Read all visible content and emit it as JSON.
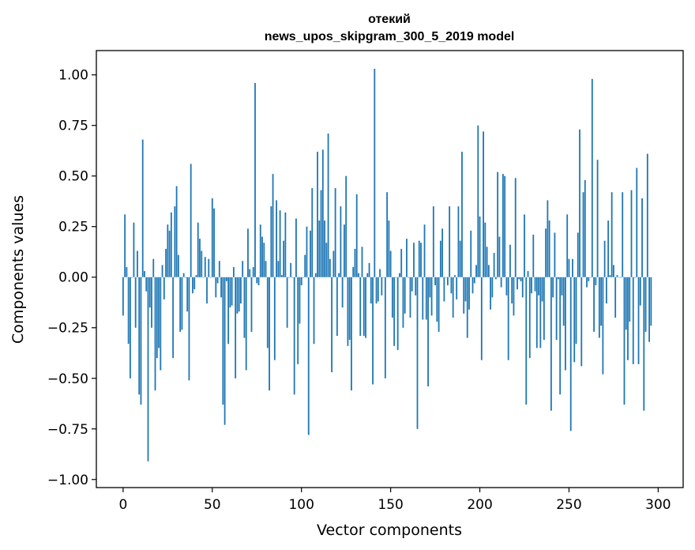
{
  "chart_data": {
    "type": "bar",
    "title_line1": "отекий",
    "title_line2": "news_upos_skipgram_300_5_2019 model",
    "xlabel": "Vector components",
    "ylabel": "Components values",
    "xlim": [
      -15,
      314
    ],
    "ylim": [
      -1.04,
      1.12
    ],
    "x_ticks": [
      0,
      50,
      100,
      150,
      200,
      250,
      300
    ],
    "x_tick_labels": [
      "0",
      "50",
      "100",
      "150",
      "200",
      "250",
      "300"
    ],
    "y_ticks": [
      1.0,
      0.75,
      0.5,
      0.25,
      0.0,
      -0.25,
      -0.5,
      -0.75,
      -1.0
    ],
    "y_tick_labels": [
      "1.00",
      "0.75",
      "0.50",
      "0.25",
      "0.00",
      "−0.25",
      "−0.50",
      "−0.75",
      "−1.00"
    ],
    "bar_color": "#1f77b4",
    "values": [
      -0.19,
      0.31,
      0.05,
      -0.33,
      -0.5,
      0.0,
      0.27,
      -0.25,
      0.13,
      -0.58,
      -0.63,
      0.68,
      0.03,
      -0.07,
      -0.91,
      -0.15,
      -0.25,
      0.09,
      -0.56,
      -0.4,
      -0.35,
      -0.46,
      0.06,
      -0.11,
      0.14,
      0.26,
      0.23,
      0.32,
      -0.4,
      0.35,
      0.45,
      0.11,
      -0.27,
      -0.26,
      0.02,
      0.0,
      -0.17,
      -0.51,
      0.56,
      -0.08,
      -0.06,
      0.01,
      0.27,
      0.19,
      0.13,
      0.0,
      0.1,
      -0.13,
      0.09,
      0.0,
      0.39,
      0.34,
      -0.1,
      -0.03,
      0.08,
      -0.1,
      -0.63,
      -0.73,
      -0.02,
      -0.33,
      -0.15,
      -0.14,
      0.05,
      -0.5,
      -0.18,
      -0.17,
      -0.13,
      0.08,
      -0.3,
      -0.46,
      0.24,
      0.04,
      -0.27,
      0.05,
      0.96,
      -0.03,
      -0.04,
      0.26,
      0.2,
      0.17,
      0.08,
      -0.35,
      -0.56,
      0.35,
      0.51,
      -0.41,
      0.38,
      0.08,
      0.33,
      0.01,
      0.18,
      0.32,
      -0.25,
      0.0,
      0.07,
      0.0,
      -0.58,
      0.29,
      -0.43,
      -0.23,
      -0.04,
      0.0,
      0.11,
      0.25,
      -0.78,
      0.23,
      0.44,
      -0.33,
      0.02,
      0.62,
      0.28,
      0.43,
      0.63,
      0.28,
      0.17,
      0.71,
      0.09,
      -0.47,
      0.13,
      0.44,
      -0.29,
      0.02,
      0.35,
      -0.15,
      0.26,
      0.5,
      -0.34,
      -0.31,
      -0.56,
      0.05,
      0.14,
      0.41,
      0.02,
      -0.29,
      0.15,
      -0.29,
      -0.3,
      0.02,
      0.07,
      -0.13,
      -0.53,
      1.03,
      -0.13,
      -0.12,
      0.04,
      -0.09,
      0.0,
      -0.5,
      0.42,
      0.28,
      0.13,
      -0.2,
      -0.34,
      0.0,
      -0.36,
      0.02,
      0.14,
      -0.25,
      -0.18,
      0.19,
      0.0,
      -0.2,
      -0.07,
      0.17,
      -0.09,
      -0.75,
      0.18,
      0.17,
      -0.21,
      0.26,
      -0.21,
      -0.54,
      -0.1,
      -0.19,
      0.35,
      -0.04,
      -0.22,
      -0.27,
      0.18,
      0.24,
      -0.12,
      0.0,
      -0.04,
      0.35,
      -0.08,
      -0.2,
      0.01,
      -0.11,
      0.35,
      0.18,
      0.62,
      -0.18,
      -0.12,
      -0.3,
      -0.16,
      0.23,
      -0.08,
      -0.03,
      0.06,
      0.75,
      0.3,
      -0.41,
      0.72,
      0.27,
      0.15,
      0.06,
      -0.16,
      -0.1,
      0.12,
      -0.01,
      0.52,
      0.2,
      -0.05,
      0.51,
      0.5,
      -0.09,
      -0.41,
      0.16,
      -0.13,
      -0.19,
      0.49,
      -0.06,
      -0.01,
      -0.02,
      -0.1,
      0.31,
      -0.63,
      0.03,
      -0.4,
      -0.08,
      0.21,
      -0.07,
      -0.35,
      -0.09,
      -0.35,
      -0.12,
      -0.31,
      0.24,
      0.38,
      0.28,
      -0.66,
      -0.1,
      0.22,
      -0.31,
      -0.01,
      -0.58,
      -0.09,
      -0.24,
      -0.46,
      0.31,
      0.09,
      -0.76,
      0.09,
      -0.42,
      -0.33,
      0.22,
      0.73,
      -0.44,
      0.42,
      0.48,
      -0.05,
      -0.02,
      0.0,
      0.98,
      -0.27,
      -0.04,
      0.58,
      -0.3,
      -0.24,
      -0.48,
      0.18,
      -0.13,
      0.28,
      0.01,
      0.42,
      0.06,
      -0.2,
      0.01,
      0.0,
      0.0,
      0.42,
      -0.63,
      -0.26,
      -0.41,
      -0.22,
      0.43,
      -0.43,
      0.0,
      0.54,
      -0.43,
      -0.14,
      0.39,
      -0.66,
      -0.27,
      0.61,
      -0.32,
      -0.24
    ]
  }
}
